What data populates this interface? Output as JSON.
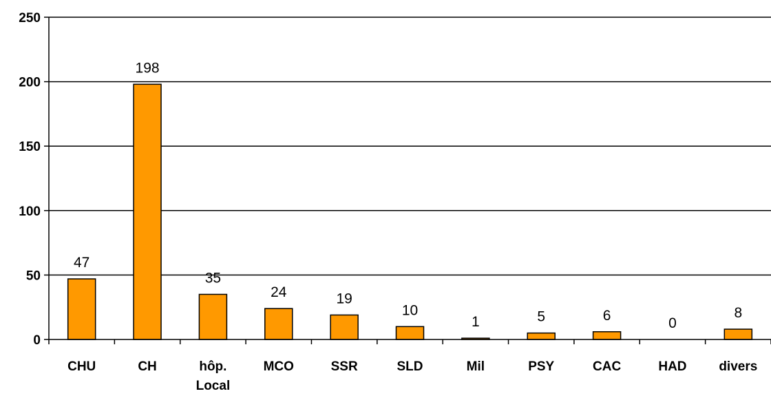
{
  "chart_data": {
    "type": "bar",
    "categories": [
      [
        "CHU"
      ],
      [
        "CH"
      ],
      [
        "hôp.",
        "Local"
      ],
      [
        "MCO"
      ],
      [
        "SSR"
      ],
      [
        "SLD"
      ],
      [
        "Mil"
      ],
      [
        "PSY"
      ],
      [
        "CAC"
      ],
      [
        "HAD"
      ],
      [
        "divers"
      ]
    ],
    "values": [
      47,
      198,
      35,
      24,
      19,
      10,
      1,
      5,
      6,
      0,
      8
    ],
    "value_labels": [
      "47",
      "198",
      "35",
      "24",
      "19",
      "10",
      "1",
      "5",
      "6",
      "0",
      "8"
    ],
    "y_ticks": [
      0,
      50,
      100,
      150,
      200,
      250
    ],
    "ylim": [
      0,
      250
    ],
    "grid": true,
    "legend": "none",
    "colors": {
      "bar_fill": "#ff9900",
      "bar_stroke": "#000000",
      "grid": "#000000",
      "axis": "#000000"
    }
  }
}
